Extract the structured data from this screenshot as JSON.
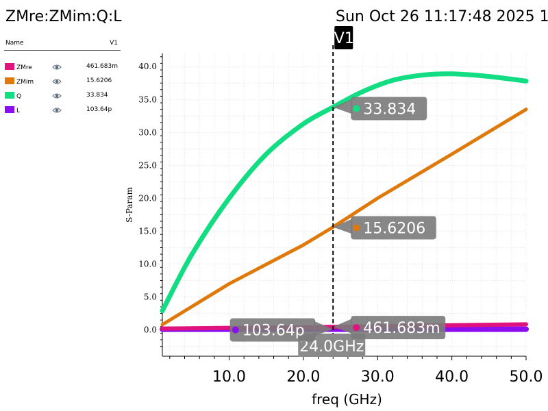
{
  "header": {
    "title": "ZMre:ZMim:Q:L",
    "datetime": "Sun Oct 26 11:17:48 2025  1"
  },
  "legend": {
    "col_name": "Name",
    "col_value": "V1",
    "items": [
      {
        "name": "ZMre",
        "value": "461.683m",
        "color": "#e0137e",
        "icon": "eye-icon"
      },
      {
        "name": "ZMim",
        "value": "15.6206",
        "color": "#dd7a0b",
        "icon": "eye-icon"
      },
      {
        "name": "Q",
        "value": "33.834",
        "color": "#13dd82",
        "icon": "eye-icon"
      },
      {
        "name": "L",
        "value": "103.64p",
        "color": "#8a0eef",
        "icon": "eye-icon"
      }
    ]
  },
  "chart_data": {
    "type": "line",
    "xlabel": "freq (GHz)",
    "ylabel": "S-Param",
    "xlim": [
      1,
      50
    ],
    "ylim": [
      -4,
      42
    ],
    "x_ticks": [
      "10.0",
      "20.0",
      "30.0",
      "40.0",
      "50.0"
    ],
    "y_ticks": [
      "0.0",
      "5.0",
      "10.0",
      "15.0",
      "20.0",
      "25.0",
      "30.0",
      "35.0",
      "40.0"
    ],
    "grid": true,
    "series": [
      {
        "name": "Q",
        "color": "#13dd82",
        "x": [
          1,
          5,
          10,
          15,
          20,
          24,
          28,
          32,
          36,
          40,
          45,
          50
        ],
        "y": [
          2.9,
          11.5,
          20.0,
          26.7,
          31.3,
          33.834,
          36.2,
          37.9,
          38.7,
          38.9,
          38.5,
          37.8
        ]
      },
      {
        "name": "ZMim",
        "color": "#dd7a0b",
        "x": [
          1,
          10,
          20,
          24,
          30,
          40,
          50
        ],
        "y": [
          0.8,
          7.0,
          12.9,
          15.6206,
          20.0,
          26.7,
          33.5
        ]
      },
      {
        "name": "ZMre",
        "color": "#e0137e",
        "x": [
          1,
          10,
          20,
          24,
          30,
          40,
          50
        ],
        "y": [
          0.2,
          0.3,
          0.4,
          0.461683,
          0.55,
          0.7,
          0.85
        ]
      },
      {
        "name": "L",
        "color": "#8a0eef",
        "x": [
          1,
          10,
          20,
          24,
          30,
          40,
          50
        ],
        "y": [
          0.1,
          0.1,
          0.1,
          0.1,
          0.1,
          0.1,
          0.1
        ]
      }
    ],
    "marker": {
      "label": "V1",
      "x": 24.0,
      "x_label": "24.0GHz",
      "readouts": [
        {
          "series": "Q",
          "text": "33.834",
          "y": 33.834,
          "side": "right"
        },
        {
          "series": "ZMim",
          "text": "15.6206",
          "y": 15.6206,
          "side": "right"
        },
        {
          "series": "ZMre",
          "text": "461.683m",
          "y": 0.461683,
          "side": "right"
        },
        {
          "series": "L",
          "text": "103.64p",
          "y": 0.1,
          "side": "left"
        }
      ]
    }
  }
}
